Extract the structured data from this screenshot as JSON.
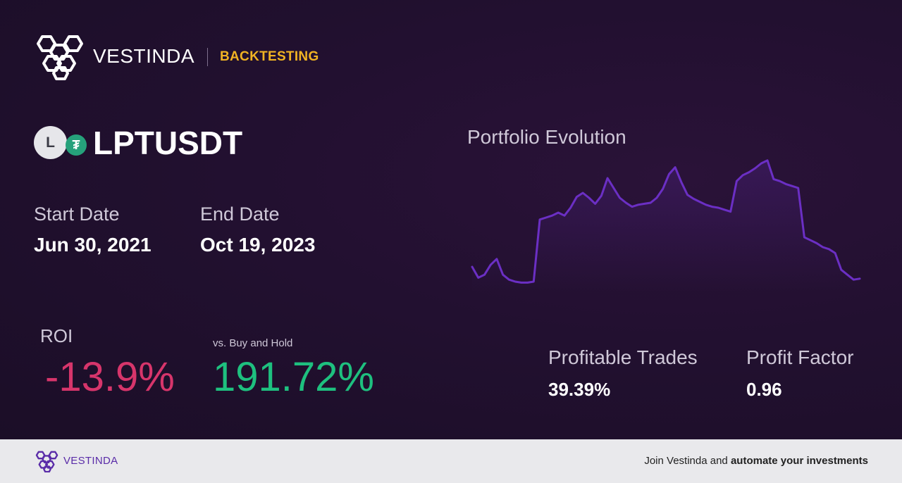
{
  "header": {
    "brand": "VESTINDA",
    "tag": "BACKTESTING"
  },
  "asset": {
    "base_badge": "L",
    "quote_badge": "₮",
    "pair": "LPTUSDT"
  },
  "dates": {
    "start_label": "Start Date",
    "start_value": "Jun 30, 2021",
    "end_label": "End Date",
    "end_value": "Oct 19, 2023"
  },
  "roi": {
    "label": "ROI",
    "value": "-13.9%",
    "bh_label": "vs. Buy and Hold",
    "bh_value": "191.72%"
  },
  "chart_data": {
    "type": "line",
    "title": "Portfolio Evolution",
    "x": [
      0,
      1,
      2,
      3,
      4,
      5,
      6,
      7,
      8,
      9,
      10,
      11,
      12,
      13,
      14,
      15,
      16,
      17,
      18,
      19,
      20,
      21,
      22,
      23,
      24,
      25,
      26,
      27,
      28,
      29,
      30,
      31,
      32,
      33,
      34,
      35,
      36,
      37,
      38,
      39,
      40,
      41,
      42,
      43,
      44,
      45,
      46,
      47,
      48,
      49,
      50,
      51,
      52,
      53,
      54,
      55,
      56,
      57,
      58,
      59,
      60,
      61,
      62,
      63
    ],
    "series": [
      {
        "values": [
          20,
          9,
          12,
          22,
          28,
          12,
          7,
          5,
          4,
          4,
          5,
          68,
          70,
          72,
          75,
          72,
          80,
          91,
          95,
          90,
          84,
          92,
          110,
          100,
          90,
          85,
          81,
          83,
          84,
          85,
          90,
          99,
          114,
          121,
          106,
          93,
          89,
          86,
          83,
          81,
          80,
          78,
          76,
          107,
          113,
          116,
          120,
          125,
          128,
          109,
          107,
          104,
          102,
          100,
          50,
          47,
          44,
          40,
          38,
          34,
          17,
          12,
          7,
          8
        ],
        "color": "#6b2fc4"
      }
    ],
    "xlabel": "",
    "ylabel": "",
    "ylim": [
      0,
      130
    ],
    "grid": false,
    "legend": "none"
  },
  "stats": {
    "profitable_label": "Profitable Trades",
    "profitable_value": "39.39%",
    "factor_label": "Profit Factor",
    "factor_value": "0.96"
  },
  "footer": {
    "brand": "VESTINDA",
    "cta_prefix": "Join Vestinda and ",
    "cta_bold": "automate your investments"
  },
  "colors": {
    "accent": "#f0b323",
    "negative": "#d7356b",
    "positive": "#1ec07f",
    "line": "#6b2fc4"
  }
}
